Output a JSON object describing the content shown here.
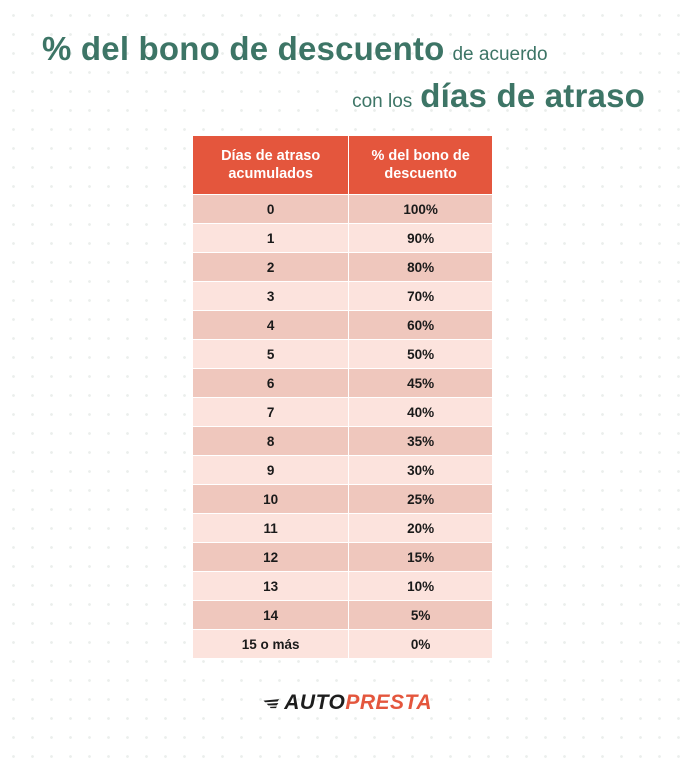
{
  "title": {
    "line1_big": "% del bono de descuento",
    "line1_small": "de acuerdo",
    "line2_small": "con los",
    "line2_big": "días de atraso"
  },
  "table": {
    "headers": [
      "Días de atraso acumulados",
      "% del bono de descuento"
    ],
    "rows": [
      [
        "0",
        "100%"
      ],
      [
        "1",
        "90%"
      ],
      [
        "2",
        "80%"
      ],
      [
        "3",
        "70%"
      ],
      [
        "4",
        "60%"
      ],
      [
        "5",
        "50%"
      ],
      [
        "6",
        "45%"
      ],
      [
        "7",
        "40%"
      ],
      [
        "8",
        "35%"
      ],
      [
        "9",
        "30%"
      ],
      [
        "10",
        "25%"
      ],
      [
        "11",
        "20%"
      ],
      [
        "12",
        "15%"
      ],
      [
        "13",
        "10%"
      ],
      [
        "14",
        "5%"
      ],
      [
        "15 o más",
        "0%"
      ]
    ]
  },
  "logo": {
    "part1": "AUTO",
    "part2": "PRESTA"
  },
  "colors": {
    "title": "#3d7566",
    "header_bg": "#e4563d",
    "row_dark": "#efc7bd",
    "row_light": "#fce3dd",
    "brand_accent": "#e4563d"
  }
}
